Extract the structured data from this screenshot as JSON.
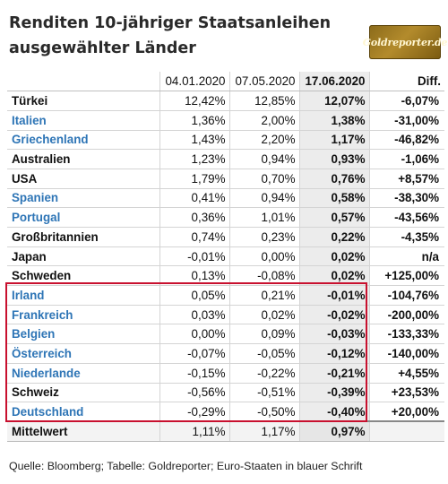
{
  "title_line1": "Renditen 10-jähriger Staatsanleihen",
  "title_line2": "ausgewählter Länder",
  "logo_text": "Goldreporter.de",
  "colors": {
    "euro_blue": "#2e75b6",
    "highlight_red": "#c8102e",
    "logo_gold": "#b38b2c"
  },
  "table": {
    "headers": [
      "",
      "04.01.2020",
      "07.05.2020",
      "17.06.2020",
      "Diff."
    ],
    "rows": [
      {
        "country": "Türkei",
        "euro": false,
        "v1": "12,42%",
        "v2": "12,85%",
        "v3": "12,07%",
        "diff": "-6,07%"
      },
      {
        "country": "Italien",
        "euro": true,
        "v1": "1,36%",
        "v2": "2,00%",
        "v3": "1,38%",
        "diff": "-31,00%"
      },
      {
        "country": "Griechenland",
        "euro": true,
        "v1": "1,43%",
        "v2": "2,20%",
        "v3": "1,17%",
        "diff": "-46,82%"
      },
      {
        "country": "Australien",
        "euro": false,
        "v1": "1,23%",
        "v2": "0,94%",
        "v3": "0,93%",
        "diff": "-1,06%"
      },
      {
        "country": "USA",
        "euro": false,
        "v1": "1,79%",
        "v2": "0,70%",
        "v3": "0,76%",
        "diff": "+8,57%"
      },
      {
        "country": "Spanien",
        "euro": true,
        "v1": "0,41%",
        "v2": "0,94%",
        "v3": "0,58%",
        "diff": "-38,30%"
      },
      {
        "country": "Portugal",
        "euro": true,
        "v1": "0,36%",
        "v2": "1,01%",
        "v3": "0,57%",
        "diff": "-43,56%"
      },
      {
        "country": "Großbritannien",
        "euro": false,
        "v1": "0,74%",
        "v2": "0,23%",
        "v3": "0,22%",
        "diff": "-4,35%"
      },
      {
        "country": "Japan",
        "euro": false,
        "v1": "-0,01%",
        "v2": "0,00%",
        "v3": "0,02%",
        "diff": "n/a"
      },
      {
        "country": "Schweden",
        "euro": false,
        "v1": "0,13%",
        "v2": "-0,08%",
        "v3": "0,02%",
        "diff": "+125,00%"
      },
      {
        "country": "Irland",
        "euro": true,
        "v1": "0,05%",
        "v2": "0,21%",
        "v3": "-0,01%",
        "diff": "-104,76%"
      },
      {
        "country": "Frankreich",
        "euro": true,
        "v1": "0,03%",
        "v2": "0,02%",
        "v3": "-0,02%",
        "diff": "-200,00%"
      },
      {
        "country": "Belgien",
        "euro": true,
        "v1": "0,00%",
        "v2": "0,09%",
        "v3": "-0,03%",
        "diff": "-133,33%"
      },
      {
        "country": "Österreich",
        "euro": true,
        "v1": "-0,07%",
        "v2": "-0,05%",
        "v3": "-0,12%",
        "diff": "-140,00%"
      },
      {
        "country": "Niederlande",
        "euro": true,
        "v1": "-0,15%",
        "v2": "-0,22%",
        "v3": "-0,21%",
        "diff": "+4,55%"
      },
      {
        "country": "Schweiz",
        "euro": false,
        "v1": "-0,56%",
        "v2": "-0,51%",
        "v3": "-0,39%",
        "diff": "+23,53%"
      },
      {
        "country": "Deutschland",
        "euro": true,
        "v1": "-0,29%",
        "v2": "-0,50%",
        "v3": "-0,40%",
        "diff": "+20,00%"
      }
    ],
    "average": {
      "label": "Mittelwert",
      "v1": "1,11%",
      "v2": "1,17%",
      "v3": "0,97%",
      "diff": ""
    }
  },
  "source": "Quelle: Bloomberg; Tabelle: Goldreporter; Euro-Staaten in blauer Schrift"
}
